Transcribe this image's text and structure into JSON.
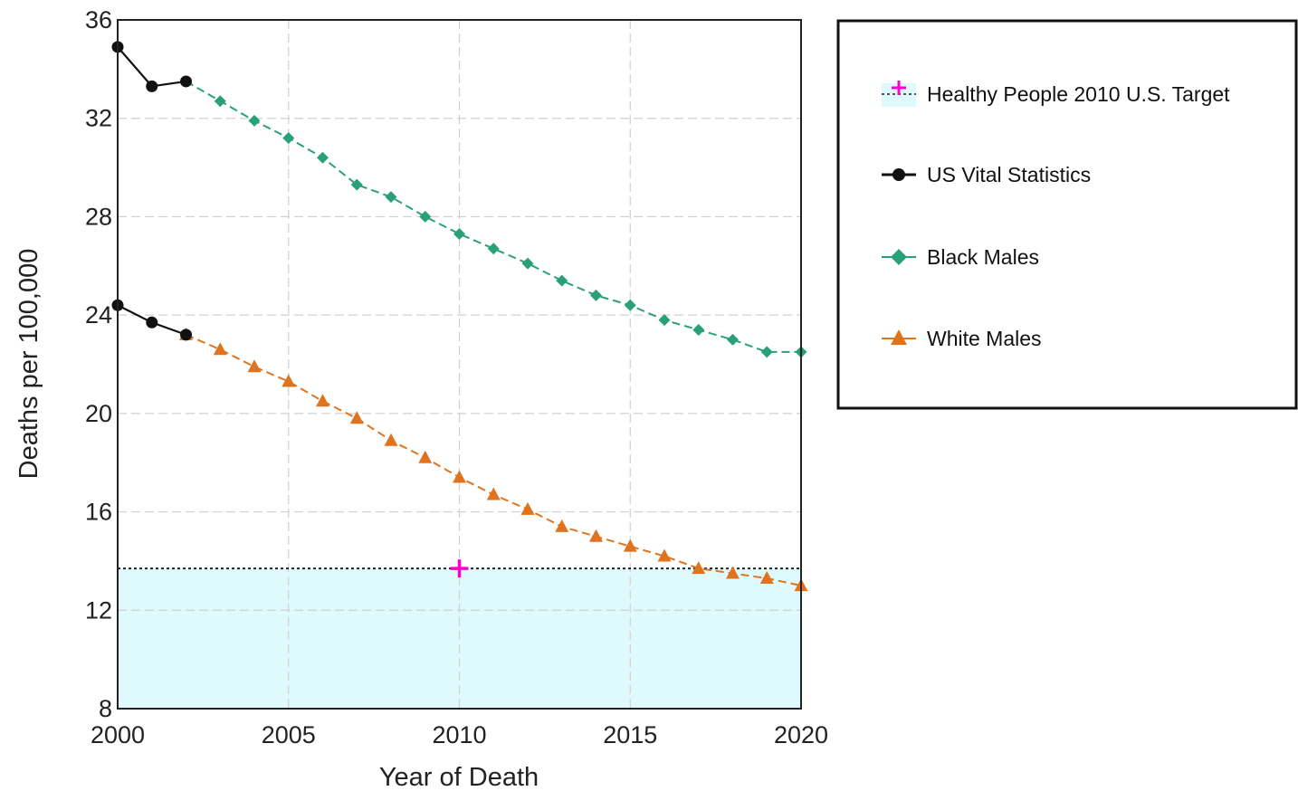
{
  "chart_data": {
    "type": "line",
    "xlabel": "Year of Death",
    "ylabel": "Deaths per 100,000",
    "xlim": [
      2000,
      2020
    ],
    "ylim": [
      8,
      36
    ],
    "xticks": [
      2000,
      2005,
      2010,
      2015,
      2020
    ],
    "yticks": [
      8,
      12,
      16,
      20,
      24,
      28,
      32,
      36
    ],
    "grid": true,
    "legend_position": "right",
    "target": {
      "name": "Healthy People 2010 U.S. Target",
      "year": 2010,
      "value": 13.7,
      "color": "#ff00cc",
      "band_color": "#dffafc"
    },
    "observed_series": [
      {
        "name": "US Vital Statistics",
        "group": "Black Males",
        "color": "#111111",
        "marker": "circle",
        "x": [
          2000,
          2001,
          2002
        ],
        "y": [
          34.9,
          33.3,
          33.5
        ]
      },
      {
        "name": "US Vital Statistics",
        "group": "White Males",
        "color": "#111111",
        "marker": "circle",
        "x": [
          2000,
          2001,
          2002
        ],
        "y": [
          24.4,
          23.7,
          23.2
        ]
      }
    ],
    "series": [
      {
        "name": "Black Males",
        "color": "#2aa07a",
        "marker": "diamond",
        "x": [
          2002,
          2003,
          2004,
          2005,
          2006,
          2007,
          2008,
          2009,
          2010,
          2011,
          2012,
          2013,
          2014,
          2015,
          2016,
          2017,
          2018,
          2019,
          2020
        ],
        "y": [
          33.5,
          32.7,
          31.9,
          31.2,
          30.4,
          29.3,
          28.8,
          28.0,
          27.3,
          26.7,
          26.1,
          25.4,
          24.8,
          24.4,
          23.8,
          23.4,
          23.0,
          22.5,
          22.5
        ]
      },
      {
        "name": "White Males",
        "color": "#e0741e",
        "marker": "triangle",
        "x": [
          2002,
          2003,
          2004,
          2005,
          2006,
          2007,
          2008,
          2009,
          2010,
          2011,
          2012,
          2013,
          2014,
          2015,
          2016,
          2017,
          2018,
          2019,
          2020
        ],
        "y": [
          23.2,
          22.6,
          21.9,
          21.3,
          20.5,
          19.8,
          18.9,
          18.2,
          17.4,
          16.7,
          16.1,
          15.4,
          15.0,
          14.6,
          14.2,
          13.7,
          13.5,
          13.3,
          13.0
        ]
      }
    ],
    "legend": [
      {
        "label": "Healthy People 2010 U.S. Target",
        "kind": "target"
      },
      {
        "label": "US Vital Statistics",
        "kind": "observed"
      },
      {
        "label": "Black Males",
        "kind": "black"
      },
      {
        "label": "White Males",
        "kind": "white"
      }
    ]
  }
}
